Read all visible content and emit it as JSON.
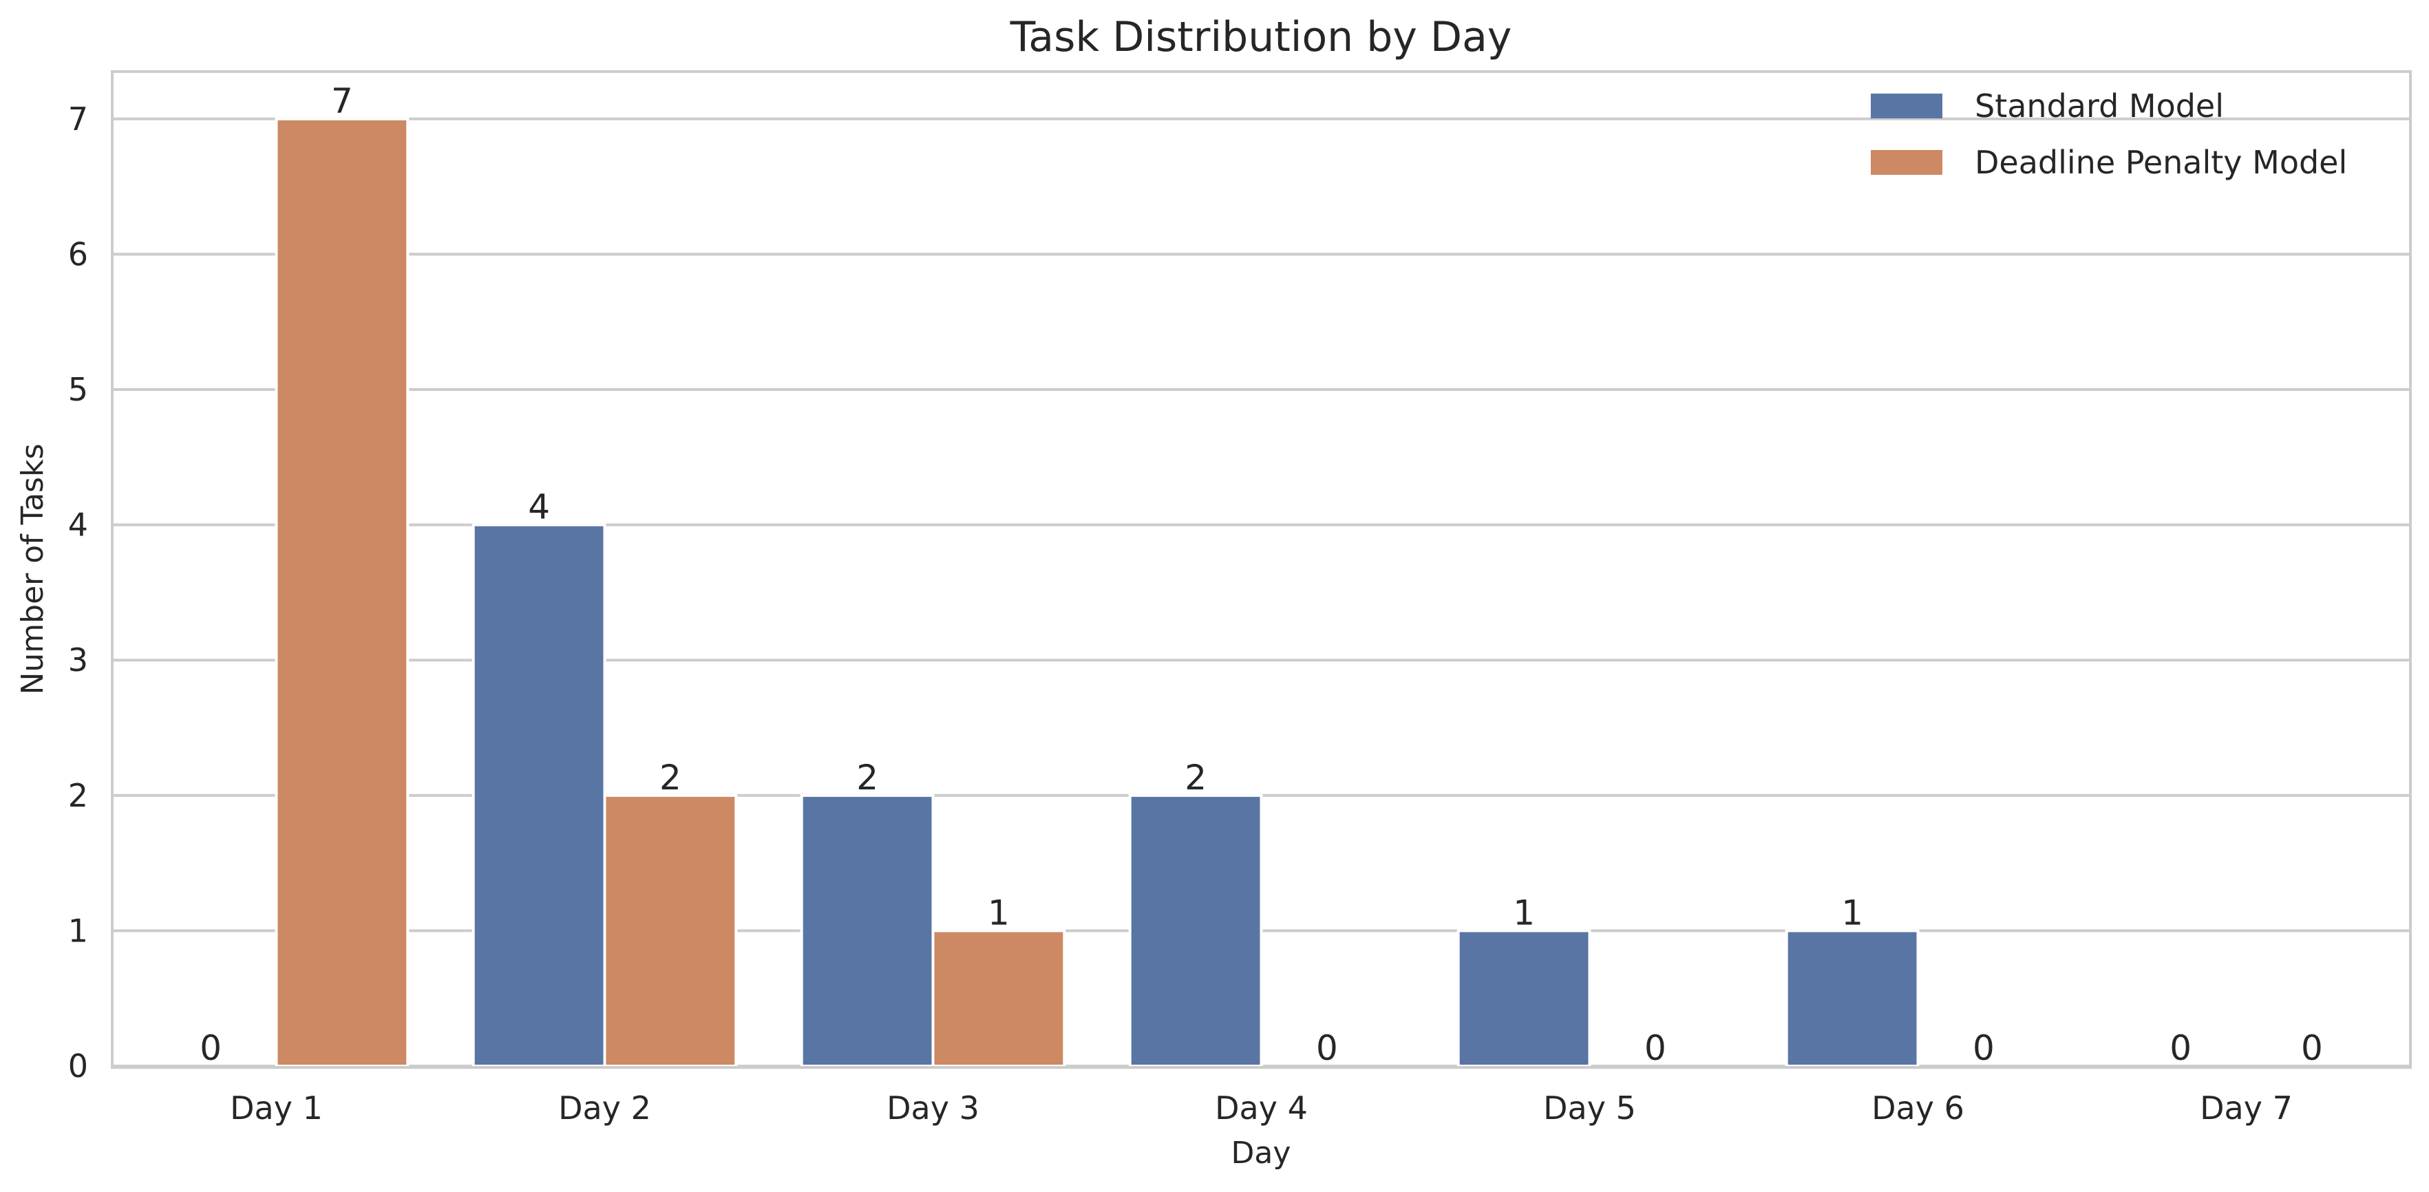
{
  "chart_data": {
    "type": "bar",
    "title": "Task Distribution by Day",
    "xlabel": "Day",
    "ylabel": "Number of Tasks",
    "categories": [
      "Day 1",
      "Day 2",
      "Day 3",
      "Day 4",
      "Day 5",
      "Day 6",
      "Day 7"
    ],
    "series": [
      {
        "name": "Standard Model",
        "color": "#5975a4",
        "values": [
          0,
          4,
          2,
          2,
          1,
          1,
          0
        ]
      },
      {
        "name": "Deadline Penalty Model",
        "color": "#cc8963",
        "values": [
          7,
          2,
          1,
          0,
          0,
          0,
          0
        ]
      }
    ],
    "ylim": [
      0,
      7.35
    ],
    "yticks": [
      0,
      1,
      2,
      3,
      4,
      5,
      6,
      7
    ],
    "grid": true,
    "legend": "top-right",
    "data_labels": true
  }
}
